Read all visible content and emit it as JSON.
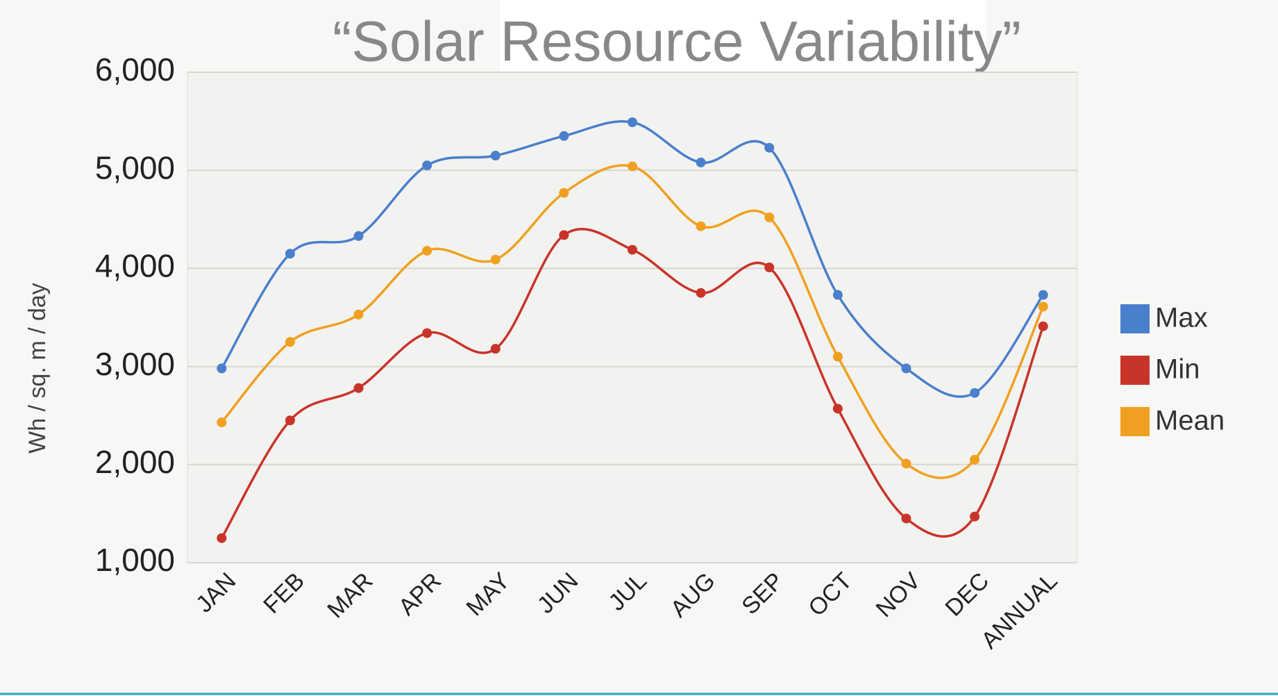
{
  "chart_data": {
    "type": "line",
    "title": "“Solar Resource Variability”",
    "y_label": "Wh / sq. m / day",
    "categories": [
      "JAN",
      "FEB",
      "MAR",
      "APR",
      "MAY",
      "JUN",
      "JUL",
      "AUG",
      "SEP",
      "OCT",
      "NOV",
      "DEC",
      "ANNUAL"
    ],
    "series": [
      {
        "name": "Max",
        "color": "#4a7fcc",
        "values": [
          2980,
          4150,
          4330,
          5050,
          5150,
          5350,
          5490,
          5080,
          5230,
          3730,
          2980,
          2730,
          3730
        ]
      },
      {
        "name": "Min",
        "color": "#c9342a",
        "values": [
          1250,
          2450,
          2780,
          3340,
          3180,
          4340,
          4190,
          3750,
          4010,
          2570,
          1450,
          1470,
          3410
        ]
      },
      {
        "name": "Mean",
        "color": "#f0a020",
        "values": [
          2430,
          3250,
          3530,
          4180,
          4090,
          4770,
          5040,
          4430,
          4520,
          3100,
          2010,
          2050,
          3610
        ]
      }
    ],
    "ylim": [
      1000,
      6000
    ],
    "yticks": [
      {
        "value": 1000,
        "label": "1,000"
      },
      {
        "value": 2000,
        "label": "2,000"
      },
      {
        "value": 3000,
        "label": "3,000"
      },
      {
        "value": 4000,
        "label": "4,000"
      },
      {
        "value": 5000,
        "label": "5,000"
      },
      {
        "value": 6000,
        "label": "6,000"
      }
    ],
    "grid": true,
    "legend": "right"
  }
}
